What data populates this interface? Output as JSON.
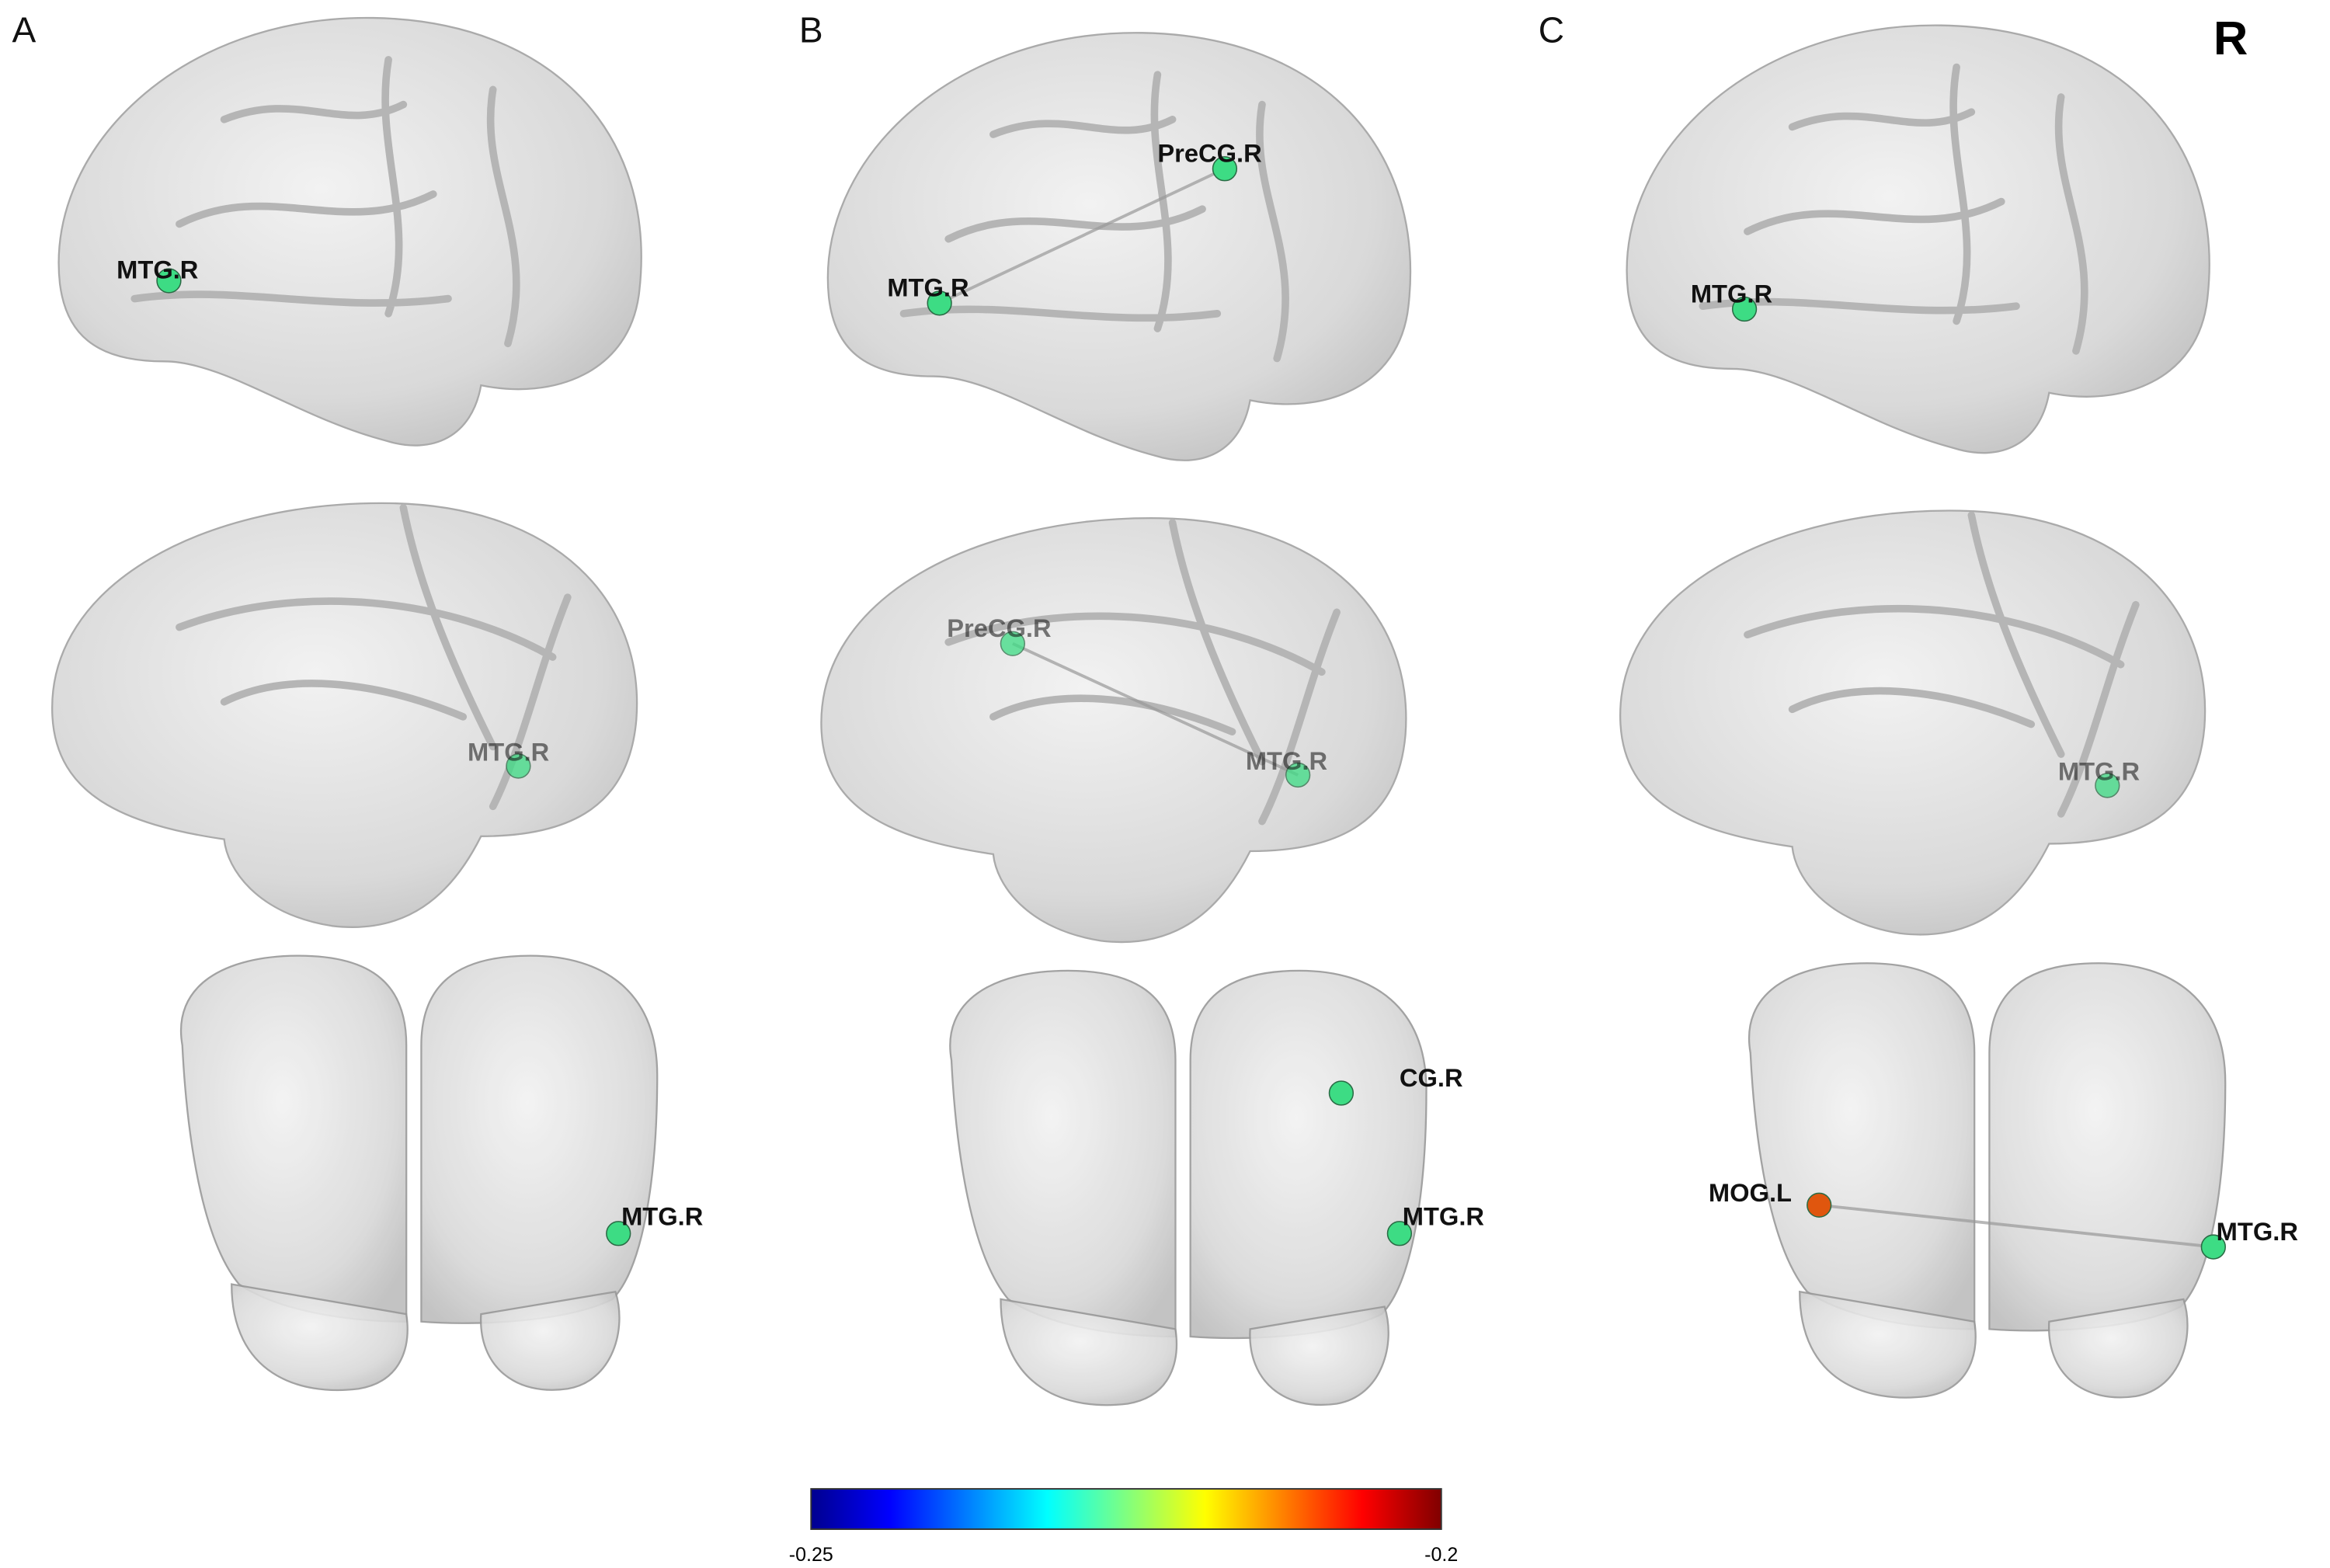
{
  "panels": [
    {
      "label": "A",
      "views": [
        {
          "nodes": [
            {
              "label": "MTG.R",
              "color": "#3ddc84"
            }
          ]
        },
        {
          "nodes": [
            {
              "label": "MTG.R",
              "color": "#3ddc84"
            }
          ]
        },
        {
          "nodes": [
            {
              "label": "MTG.R",
              "color": "#3ddc84"
            }
          ]
        }
      ]
    },
    {
      "label": "B",
      "views": [
        {
          "edge": true,
          "nodes": [
            {
              "label": "PreCG.R",
              "color": "#3ddc84"
            },
            {
              "label": "MTG.R",
              "color": "#3ddc84"
            }
          ]
        },
        {
          "edge": true,
          "nodes": [
            {
              "label": "PreCG.R",
              "color": "#3ddc84"
            },
            {
              "label": "MTG.R",
              "color": "#3ddc84"
            }
          ]
        },
        {
          "edge": false,
          "nodes": [
            {
              "label": "CG.R",
              "color": "#3ddc84"
            },
            {
              "label": "MTG.R",
              "color": "#3ddc84"
            }
          ]
        }
      ]
    },
    {
      "label": "C",
      "views": [
        {
          "nodes": [
            {
              "label": "MTG.R",
              "color": "#3ddc84"
            }
          ]
        },
        {
          "nodes": [
            {
              "label": "MTG.R",
              "color": "#3ddc84"
            }
          ]
        },
        {
          "edge": true,
          "nodes": [
            {
              "label": "MOG.L",
              "color": "#e0560e"
            },
            {
              "label": "MTG.R",
              "color": "#3ddc84"
            }
          ]
        }
      ]
    }
  ],
  "corner_label": "R",
  "colorbar": {
    "min_label": "-0.25",
    "max_label": "-0.2"
  }
}
